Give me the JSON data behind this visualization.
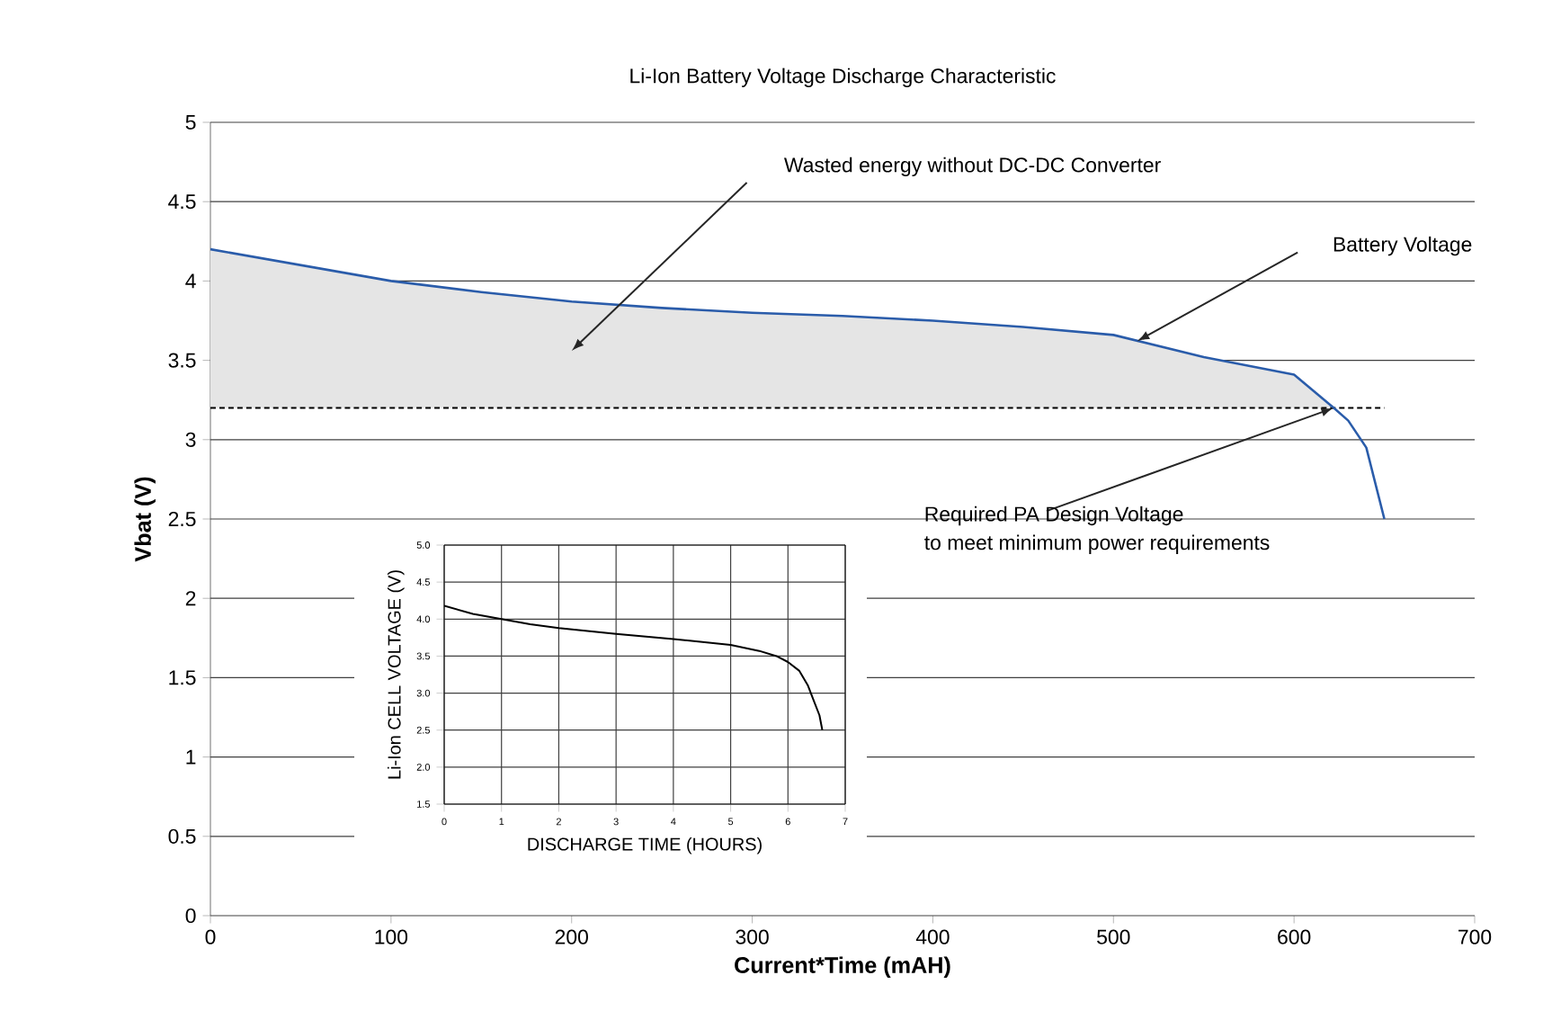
{
  "chart_data": [
    {
      "type": "line",
      "title": "Li-Ion Battery Voltage Discharge Characteristic",
      "xlabel": "Current*Time (mAH)",
      "ylabel": "Vbat (V)",
      "x": [
        0,
        50,
        100,
        150,
        200,
        250,
        300,
        350,
        400,
        450,
        500,
        550,
        600,
        622,
        630,
        640,
        650
      ],
      "series": [
        {
          "color": "#2a5caa",
          "values": [
            4.2,
            4.1,
            4.0,
            3.93,
            3.87,
            3.83,
            3.8,
            3.78,
            3.75,
            3.71,
            3.66,
            3.52,
            3.41,
            3.2,
            3.12,
            2.95,
            2.5
          ],
          "lower": [
            3.2,
            3.2,
            3.2,
            3.2,
            3.2,
            3.2,
            3.2,
            3.2,
            3.2,
            3.2,
            3.2,
            3.2,
            3.2,
            3.2,
            null,
            null,
            null
          ],
          "upper": [
            4.2,
            4.1,
            4.0,
            3.93,
            3.87,
            3.83,
            3.8,
            3.78,
            3.75,
            3.71,
            3.66,
            3.52,
            3.41,
            3.2,
            null,
            null,
            null
          ]
        }
      ],
      "xlim": [
        0,
        700
      ],
      "ylim": [
        0,
        5
      ],
      "xticks": [
        0,
        100,
        200,
        300,
        400,
        500,
        600,
        700
      ],
      "yticks": [
        0,
        0.5,
        1,
        1.5,
        2,
        2.5,
        3,
        3.5,
        4,
        4.5,
        5
      ],
      "grid": "y",
      "ref_lines": [
        {
          "axis": "y",
          "value": 3.2,
          "color": "#000000",
          "line_style": "dashed"
        }
      ],
      "annotations": [
        "Wasted energy without DC-DC Converter",
        "Battery Voltage",
        {
          "text": "Required PA Design Voltage",
          "x": 622,
          "y": 3.2
        },
        "to meet minimum power requirements"
      ]
    },
    {
      "type": "line",
      "xlabel": "DISCHARGE TIME (HOURS)",
      "ylabel": "Li-Ion CELL VOLTAGE (V)",
      "x": [
        0,
        0.5,
        1,
        1.5,
        2,
        3,
        4,
        5,
        5.5,
        5.8,
        6,
        6.2,
        6.35,
        6.45,
        6.55,
        6.6
      ],
      "series": [
        {
          "color": "#000000",
          "values": [
            4.18,
            4.07,
            4.0,
            3.93,
            3.88,
            3.8,
            3.73,
            3.65,
            3.57,
            3.5,
            3.42,
            3.3,
            3.1,
            2.9,
            2.7,
            2.5
          ]
        }
      ],
      "xlim": [
        0,
        7
      ],
      "ylim": [
        1.5,
        5
      ],
      "xticks": [
        0,
        1,
        2,
        3,
        4,
        5,
        6,
        7
      ],
      "yticks": [
        {
          "value": 1.5,
          "label": "1.5"
        },
        {
          "value": 2,
          "label": "2.0"
        },
        {
          "value": 2.5,
          "label": "2.5"
        },
        {
          "value": 3,
          "label": "3.0"
        },
        {
          "value": 3.5,
          "label": "3.5"
        },
        {
          "value": 4,
          "label": "4.0"
        },
        {
          "value": 4.5,
          "label": "4.5"
        },
        {
          "value": 5,
          "label": "5.0"
        }
      ],
      "grid": true
    }
  ]
}
